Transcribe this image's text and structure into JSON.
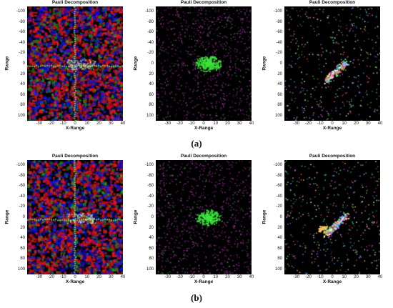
{
  "panels": [
    {
      "title": "Pauli Decomposition",
      "style": "full"
    },
    {
      "title": "Pauli Decomposition",
      "style": "sparse"
    },
    {
      "title": "Pauli Decomposition",
      "style": "veryscattered"
    },
    {
      "title": "Pauli Decomposition",
      "style": "full"
    },
    {
      "title": "Pauli Decomposition",
      "style": "sparse"
    },
    {
      "title": "Pauli Decomposition",
      "style": "veryscattered2"
    }
  ],
  "axes": {
    "xlabel": "X-Range",
    "ylabel": "Range",
    "xticks": [
      "-30",
      "-20",
      "-10",
      "0",
      "10",
      "20",
      "30",
      "40"
    ],
    "yticks": [
      "-100",
      "-80",
      "-60",
      "-40",
      "-20",
      "0",
      "20",
      "40",
      "60",
      "80",
      "100"
    ]
  },
  "captions": {
    "a": "(a)",
    "b": "(b)"
  }
}
